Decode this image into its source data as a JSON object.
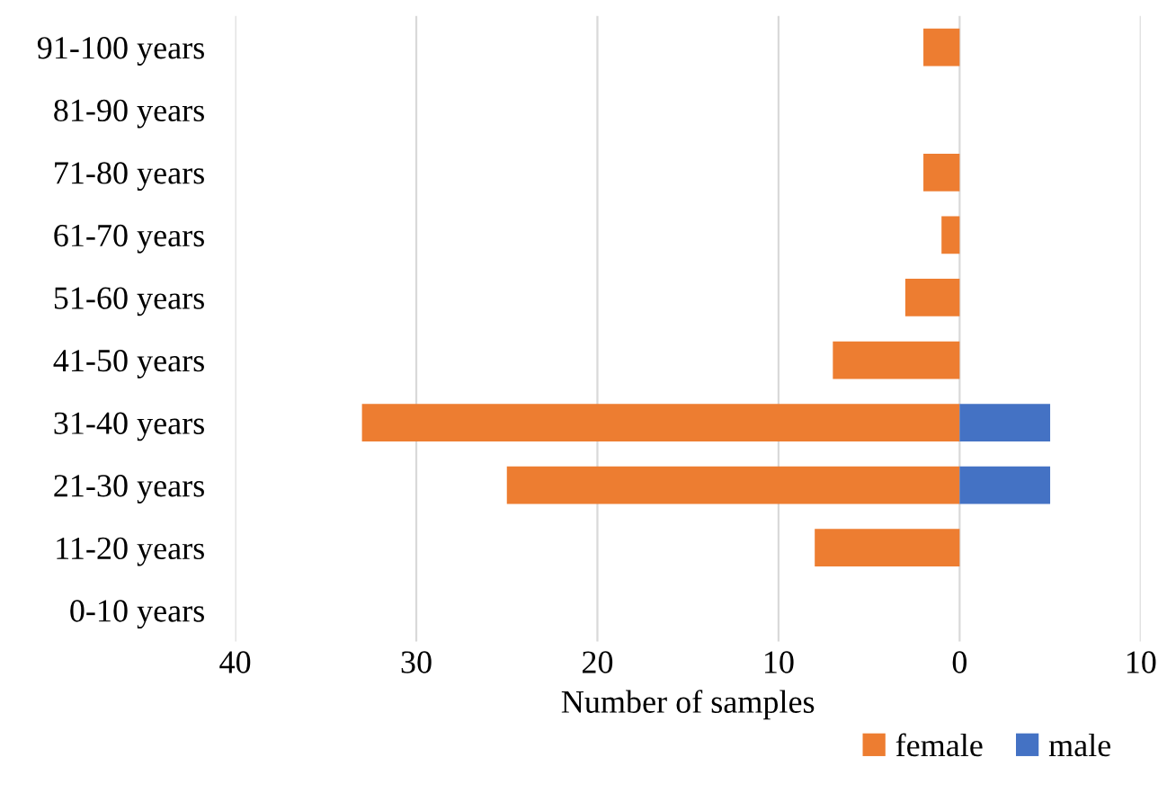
{
  "chart_data": {
    "type": "bar",
    "orientation": "horizontal",
    "stacked": true,
    "categories": [
      "91-100 years",
      "81-90 years",
      "71-80 years",
      "61-70 years",
      "51-60 years",
      "41-50 years",
      "31-40 years",
      "21-30 years",
      "11-20 years",
      "0-10 years"
    ],
    "series": [
      {
        "name": "female",
        "color": "#ed7d31",
        "values": [
          -2,
          0,
          -2,
          -1,
          -3,
          -7,
          -33,
          -25,
          -8,
          0
        ]
      },
      {
        "name": "male",
        "color": "#4472c4",
        "values": [
          0,
          0,
          0,
          0,
          0,
          0,
          5,
          5,
          0,
          0
        ]
      }
    ],
    "xlabel": "Number of samples",
    "xlim": [
      -40,
      10
    ],
    "xticks": [
      {
        "value": -40,
        "label": "40"
      },
      {
        "value": -30,
        "label": "30"
      },
      {
        "value": -20,
        "label": "20"
      },
      {
        "value": -10,
        "label": "10"
      },
      0,
      10
    ],
    "grid": "x",
    "legend": "bottom right"
  }
}
